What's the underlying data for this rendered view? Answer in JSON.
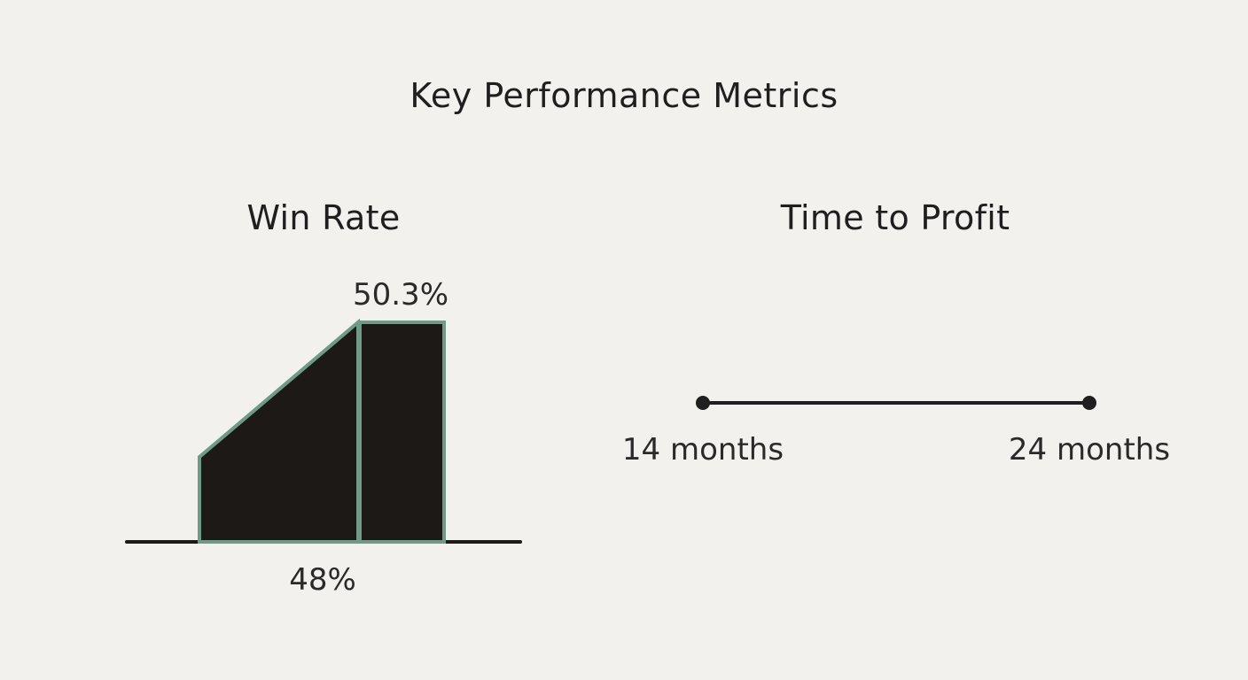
{
  "title": "Key Performance Metrics",
  "chart_data": [
    {
      "type": "area",
      "title": "Win Rate",
      "values": [
        48,
        50.3
      ],
      "value_labels": [
        "48%",
        "50.3%"
      ],
      "unit": "%",
      "colors": {
        "fill": "#1c1917",
        "stroke": "#6f9a86",
        "axis": "#1c1917"
      }
    },
    {
      "type": "line",
      "title": "Time to Profit",
      "range": [
        14,
        24
      ],
      "range_labels": [
        "14 months",
        "24 months"
      ],
      "unit": "months",
      "colors": {
        "line": "#1f1f1f",
        "point": "#1f1f1f"
      }
    }
  ]
}
